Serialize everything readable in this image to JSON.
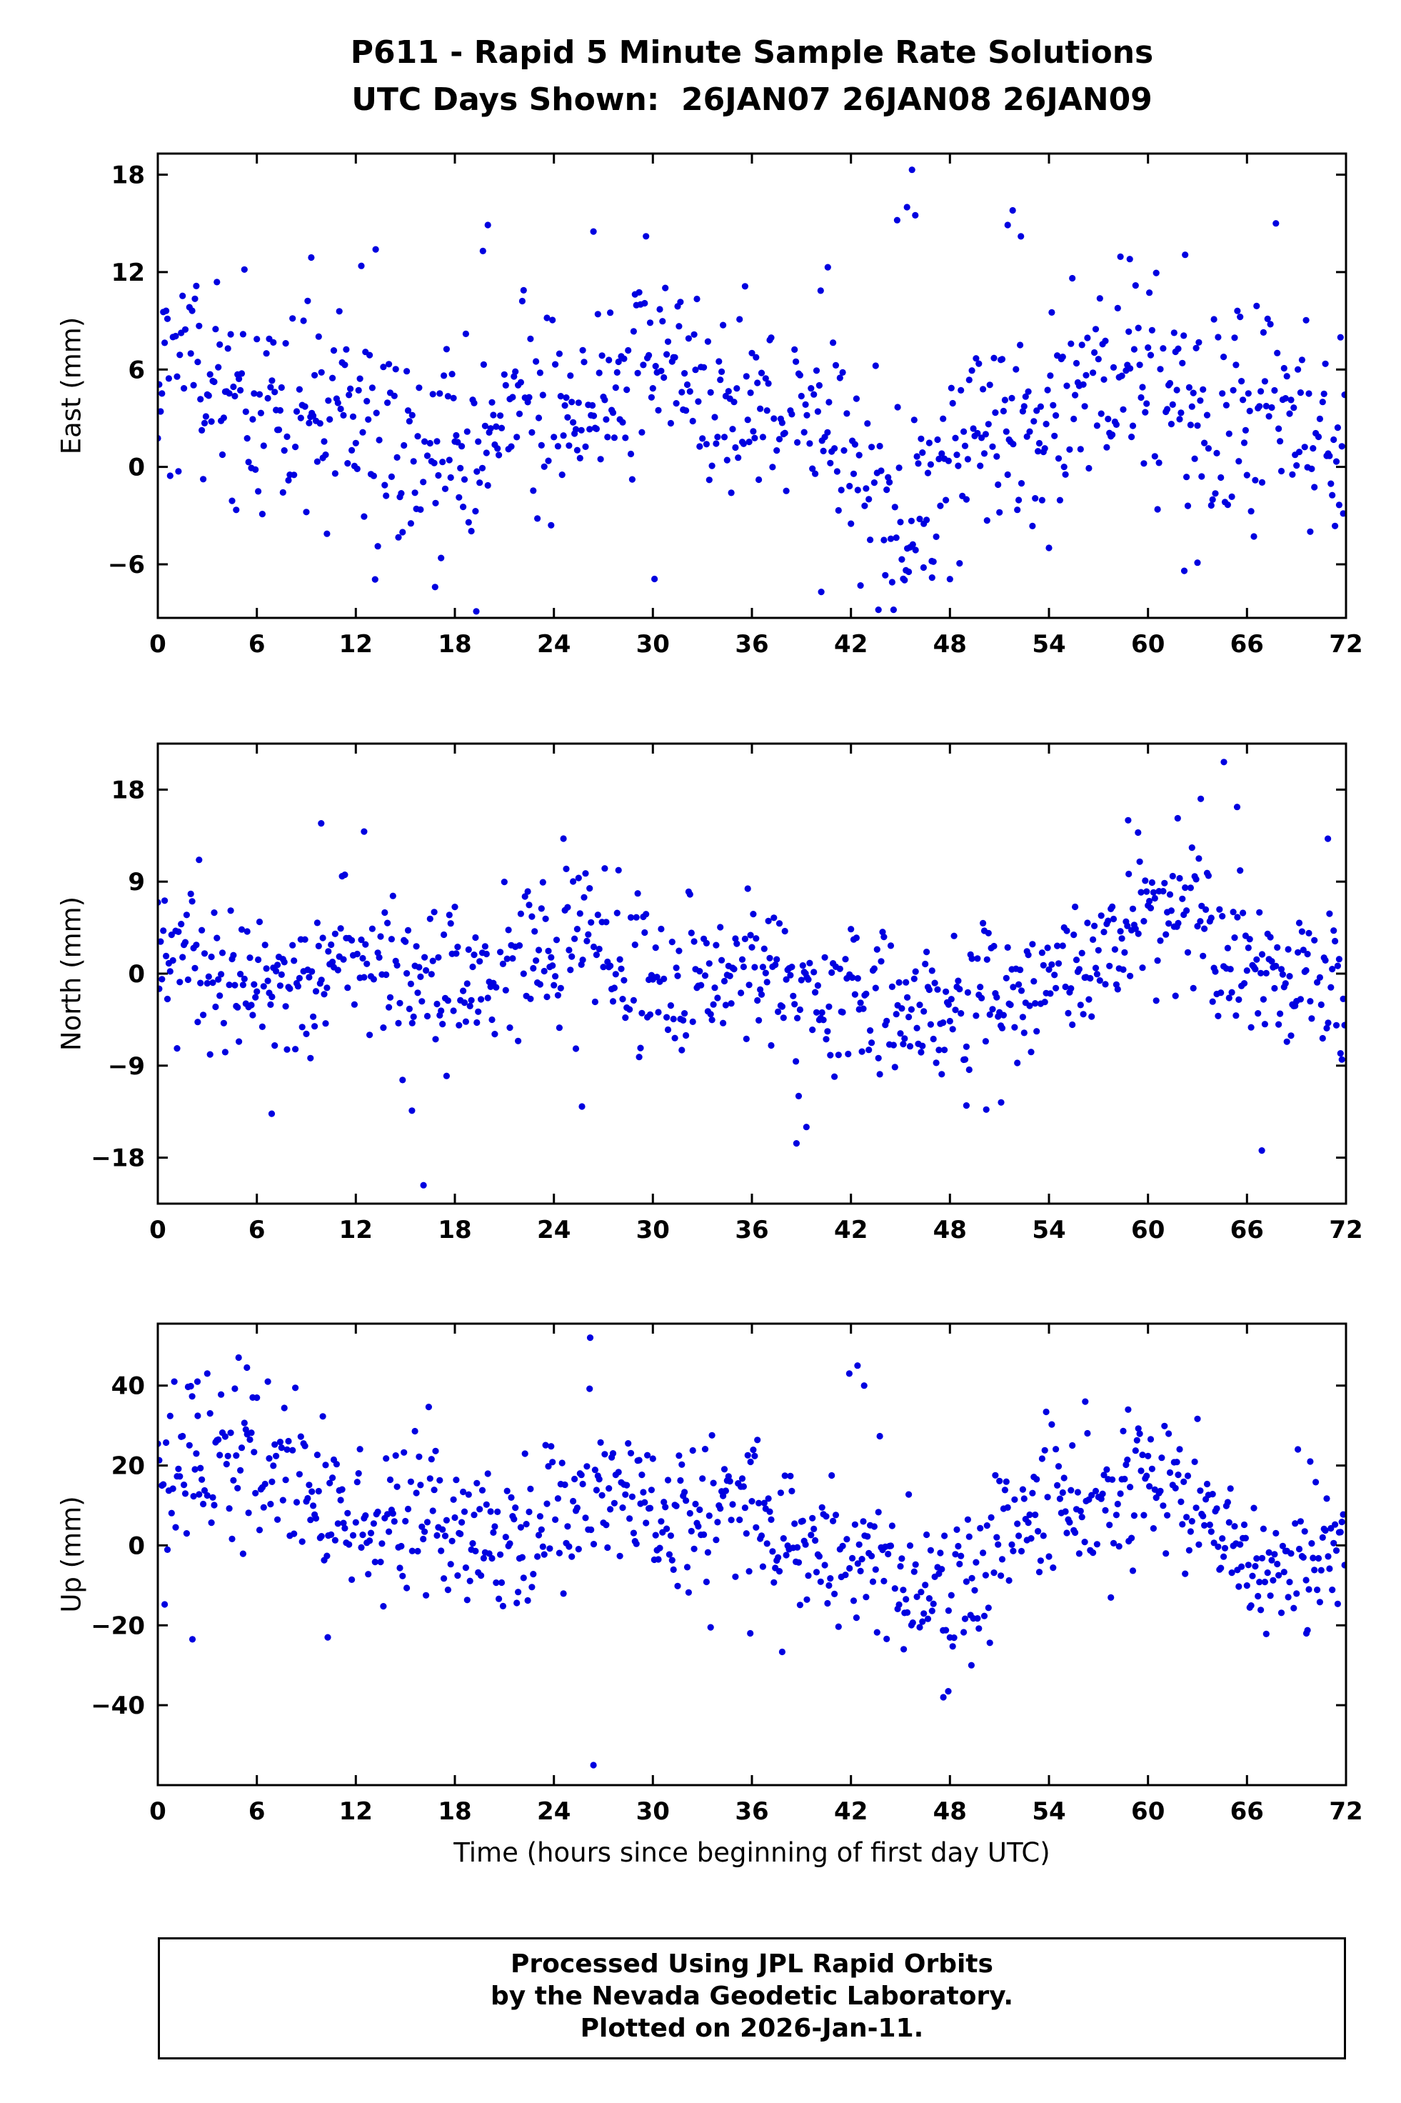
{
  "title": {
    "line1": "P611 - Rapid 5 Minute Sample Rate Solutions",
    "line2": "UTC Days Shown:  26JAN07 26JAN08 26JAN09"
  },
  "xlabel": "Time (hours since beginning of first day UTC)",
  "footer": {
    "lines": [
      "Processed Using JPL Rapid Orbits",
      "by the Nevada Geodetic Laboratory.",
      "Plotted on 2026-Jan-11."
    ]
  },
  "colors": {
    "marker": "#0000e0",
    "axis": "#000000",
    "background": "#ffffff"
  },
  "chart_data": [
    {
      "type": "scatter",
      "name": "east",
      "title": "East component time series",
      "ylabel": "East (mm)",
      "xlabel": "Time (hours since beginning of first day UTC)",
      "xlim": [
        0,
        72
      ],
      "xticks": [
        0,
        6,
        12,
        18,
        24,
        30,
        36,
        42,
        48,
        54,
        60,
        66,
        72
      ],
      "ylim": [
        -9.3,
        19.3
      ],
      "yticks": [
        -6,
        0,
        6,
        12,
        18
      ],
      "grid": false,
      "legend": "none",
      "marker": {
        "shape": "circle",
        "color": "#0000e0",
        "radius_px": 4.6
      },
      "sampling": "5-minute rapid solutions over 72 hours (~860 points)",
      "point_synthesis": {
        "seed": 12345,
        "n": 864,
        "x_step": 0.0833333,
        "keep_prob": 0.93,
        "base": 3.2,
        "std": 3.1,
        "sines": [
          [
            2.0,
            29,
            1.2
          ],
          [
            1.3,
            9.5,
            0.4
          ]
        ],
        "bumps": [
          [
            46,
            2.5,
            -4.0
          ]
        ],
        "clip": [
          -8.8,
          15.0
        ]
      },
      "outliers": [
        [
          45.7,
          18.3
        ],
        [
          45.4,
          16.0
        ],
        [
          45.9,
          15.5
        ],
        [
          44.8,
          15.2
        ],
        [
          51.8,
          15.8
        ],
        [
          51.5,
          14.9
        ],
        [
          52.3,
          14.2
        ],
        [
          20.0,
          14.9
        ],
        [
          19.7,
          13.3
        ],
        [
          26.4,
          14.5
        ],
        [
          13.2,
          13.4
        ],
        [
          9.3,
          12.9
        ],
        [
          58.9,
          12.8
        ],
        [
          40.6,
          12.3
        ],
        [
          16.8,
          -7.4
        ],
        [
          19.3,
          -8.9
        ],
        [
          40.2,
          -7.7
        ],
        [
          46.4,
          -6.2
        ],
        [
          46.9,
          -5.8
        ],
        [
          30.1,
          -6.9
        ],
        [
          62.2,
          -6.4
        ],
        [
          63.0,
          -5.9
        ]
      ]
    },
    {
      "type": "scatter",
      "name": "north",
      "title": "North component time series",
      "ylabel": "North (mm)",
      "xlabel": "Time (hours since beginning of first day UTC)",
      "xlim": [
        0,
        72
      ],
      "xticks": [
        0,
        6,
        12,
        18,
        24,
        30,
        36,
        42,
        48,
        54,
        60,
        66,
        72
      ],
      "ylim": [
        -22.5,
        22.5
      ],
      "yticks": [
        -18,
        -9,
        0,
        9,
        18
      ],
      "grid": false,
      "legend": "none",
      "marker": {
        "shape": "circle",
        "color": "#0000e0",
        "radius_px": 4.6
      },
      "sampling": "5-minute rapid solutions over 72 hours (~860 points)",
      "point_synthesis": {
        "seed": 54321,
        "n": 864,
        "x_step": 0.0833333,
        "keep_prob": 0.93,
        "base": 0.0,
        "std": 3.6,
        "sines": [
          [
            1.8,
            31,
            2.6
          ],
          [
            1.4,
            12,
            1.0
          ]
        ],
        "bumps": [
          [
            49.5,
            3.0,
            -5.0
          ],
          [
            63,
            4.0,
            4.5
          ],
          [
            9.5,
            2.5,
            3.0
          ]
        ],
        "clip": [
          -12.8,
          13.5
        ]
      },
      "outliers": [
        [
          64.6,
          20.7
        ],
        [
          63.2,
          17.1
        ],
        [
          65.4,
          16.3
        ],
        [
          61.8,
          15.2
        ],
        [
          9.9,
          14.7
        ],
        [
          12.5,
          13.9
        ],
        [
          58.8,
          15.0
        ],
        [
          59.4,
          13.8
        ],
        [
          70.9,
          13.2
        ],
        [
          16.1,
          -20.7
        ],
        [
          38.7,
          -16.6
        ],
        [
          66.9,
          -17.3
        ],
        [
          6.9,
          -13.7
        ],
        [
          15.4,
          -13.4
        ],
        [
          25.7,
          -13.0
        ],
        [
          50.2,
          -13.3
        ],
        [
          49.0,
          -12.9
        ],
        [
          51.1,
          -12.6
        ],
        [
          39.3,
          -15.0
        ]
      ]
    },
    {
      "type": "scatter",
      "name": "up",
      "title": "Up component time series",
      "ylabel": "Up (mm)",
      "xlabel": "Time (hours since beginning of first day UTC)",
      "xlim": [
        0,
        72
      ],
      "xticks": [
        0,
        6,
        12,
        18,
        24,
        30,
        36,
        42,
        48,
        54,
        60,
        66,
        72
      ],
      "ylim": [
        -60,
        55.5
      ],
      "yticks": [
        -40,
        -20,
        0,
        20,
        40
      ],
      "grid": false,
      "legend": "none",
      "marker": {
        "shape": "circle",
        "color": "#0000e0",
        "radius_px": 4.6
      },
      "sampling": "5-minute rapid solutions over 72 hours (~860 points)",
      "point_synthesis": {
        "seed": 99999,
        "n": 864,
        "x_step": 0.0833333,
        "keep_prob": 0.93,
        "base": 6.0,
        "std": 9.5,
        "sines": [
          [
            5.0,
            26,
            0.8
          ],
          [
            3.5,
            9,
            2.0
          ]
        ],
        "bumps": [
          [
            4,
            2.5,
            14.0
          ],
          [
            13.5,
            2.5,
            7.0
          ],
          [
            47,
            3.5,
            -15.0
          ],
          [
            59,
            4.0,
            6.0
          ],
          [
            69.5,
            2.0,
            -9.0
          ]
        ],
        "clip": [
          -29,
          41
        ]
      },
      "outliers": [
        [
          26.2,
          52
        ],
        [
          26.4,
          -55
        ],
        [
          4.9,
          47
        ],
        [
          5.4,
          44.5
        ],
        [
          3.0,
          43
        ],
        [
          2.4,
          41
        ],
        [
          42.4,
          45
        ],
        [
          41.9,
          43
        ],
        [
          42.8,
          40
        ],
        [
          47.6,
          -38
        ],
        [
          47.9,
          -36.5
        ],
        [
          49.3,
          -30
        ],
        [
          45.2,
          -26
        ],
        [
          10.3,
          -23
        ],
        [
          35.9,
          -22
        ],
        [
          69.6,
          -22
        ],
        [
          2.1,
          -23.5
        ],
        [
          33.5,
          -20.5
        ],
        [
          56.2,
          36
        ],
        [
          58.8,
          34
        ]
      ]
    }
  ]
}
